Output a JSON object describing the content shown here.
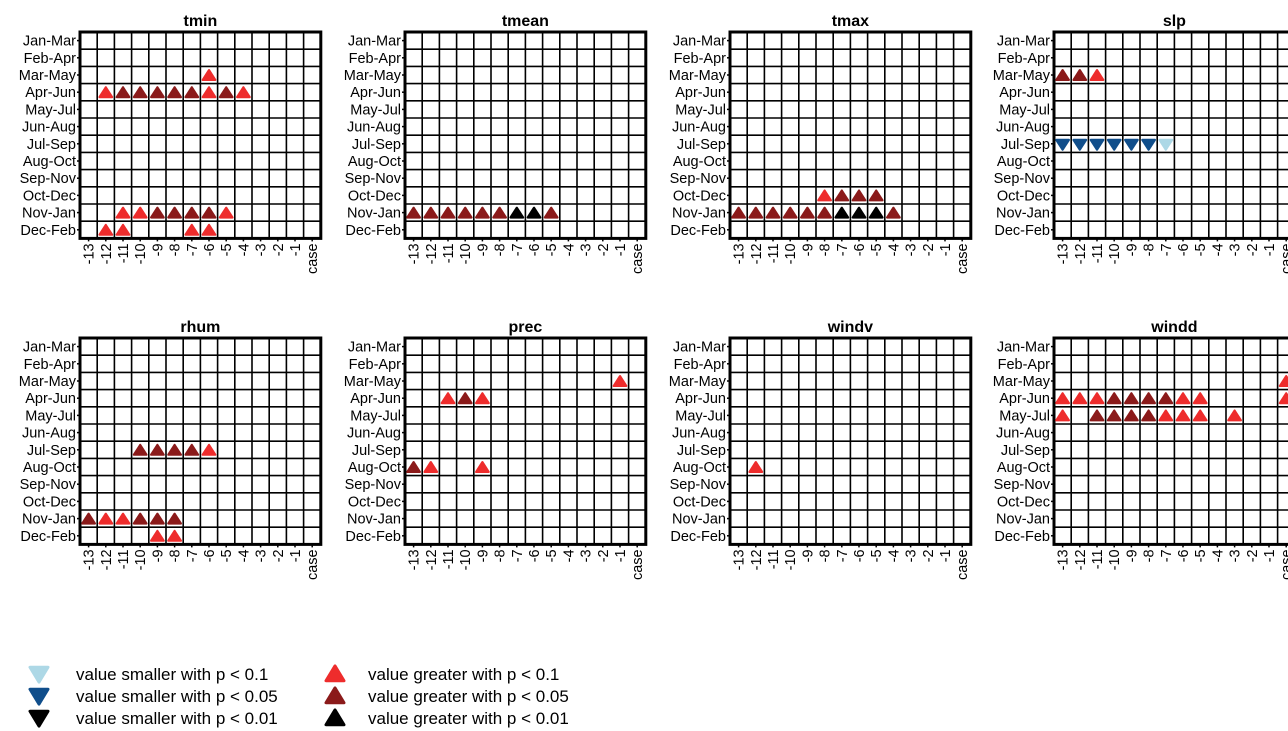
{
  "chart_data": {
    "type": "heatmap",
    "rows": [
      "Jan-Mar",
      "Feb-Apr",
      "Mar-May",
      "Apr-Jun",
      "May-Jul",
      "Jun-Aug",
      "Jul-Sep",
      "Aug-Oct",
      "Sep-Nov",
      "Oct-Dec",
      "Nov-Jan",
      "Dec-Feb"
    ],
    "columns": [
      "-13",
      "-12",
      "-11",
      "-10",
      "-9",
      "-8",
      "-7",
      "-6",
      "-5",
      "-4",
      "-3",
      "-2",
      "-1",
      "case"
    ],
    "panels": [
      {
        "title": "tmin",
        "marks": [
          {
            "row": "Mar-May",
            "col": "-6",
            "code": "g1"
          },
          {
            "row": "Apr-Jun",
            "col": "-12",
            "code": "g1"
          },
          {
            "row": "Apr-Jun",
            "col": "-11",
            "code": "g05"
          },
          {
            "row": "Apr-Jun",
            "col": "-10",
            "code": "g05"
          },
          {
            "row": "Apr-Jun",
            "col": "-9",
            "code": "g05"
          },
          {
            "row": "Apr-Jun",
            "col": "-8",
            "code": "g05"
          },
          {
            "row": "Apr-Jun",
            "col": "-7",
            "code": "g05"
          },
          {
            "row": "Apr-Jun",
            "col": "-6",
            "code": "g1"
          },
          {
            "row": "Apr-Jun",
            "col": "-5",
            "code": "g05"
          },
          {
            "row": "Apr-Jun",
            "col": "-4",
            "code": "g1"
          },
          {
            "row": "Nov-Jan",
            "col": "-11",
            "code": "g1"
          },
          {
            "row": "Nov-Jan",
            "col": "-10",
            "code": "g1"
          },
          {
            "row": "Nov-Jan",
            "col": "-9",
            "code": "g05"
          },
          {
            "row": "Nov-Jan",
            "col": "-8",
            "code": "g05"
          },
          {
            "row": "Nov-Jan",
            "col": "-7",
            "code": "g05"
          },
          {
            "row": "Nov-Jan",
            "col": "-6",
            "code": "g05"
          },
          {
            "row": "Nov-Jan",
            "col": "-5",
            "code": "g1"
          },
          {
            "row": "Dec-Feb",
            "col": "-12",
            "code": "g1"
          },
          {
            "row": "Dec-Feb",
            "col": "-11",
            "code": "g1"
          },
          {
            "row": "Dec-Feb",
            "col": "-7",
            "code": "g1"
          },
          {
            "row": "Dec-Feb",
            "col": "-6",
            "code": "g1"
          }
        ]
      },
      {
        "title": "tmean",
        "marks": [
          {
            "row": "Nov-Jan",
            "col": "-13",
            "code": "g05"
          },
          {
            "row": "Nov-Jan",
            "col": "-12",
            "code": "g05"
          },
          {
            "row": "Nov-Jan",
            "col": "-11",
            "code": "g05"
          },
          {
            "row": "Nov-Jan",
            "col": "-10",
            "code": "g05"
          },
          {
            "row": "Nov-Jan",
            "col": "-9",
            "code": "g05"
          },
          {
            "row": "Nov-Jan",
            "col": "-8",
            "code": "g05"
          },
          {
            "row": "Nov-Jan",
            "col": "-7",
            "code": "g01"
          },
          {
            "row": "Nov-Jan",
            "col": "-6",
            "code": "g01"
          },
          {
            "row": "Nov-Jan",
            "col": "-5",
            "code": "g05"
          }
        ]
      },
      {
        "title": "tmax",
        "marks": [
          {
            "row": "Oct-Dec",
            "col": "-8",
            "code": "g1"
          },
          {
            "row": "Oct-Dec",
            "col": "-7",
            "code": "g05"
          },
          {
            "row": "Oct-Dec",
            "col": "-6",
            "code": "g05"
          },
          {
            "row": "Oct-Dec",
            "col": "-5",
            "code": "g05"
          },
          {
            "row": "Nov-Jan",
            "col": "-13",
            "code": "g05"
          },
          {
            "row": "Nov-Jan",
            "col": "-12",
            "code": "g05"
          },
          {
            "row": "Nov-Jan",
            "col": "-11",
            "code": "g05"
          },
          {
            "row": "Nov-Jan",
            "col": "-10",
            "code": "g05"
          },
          {
            "row": "Nov-Jan",
            "col": "-9",
            "code": "g05"
          },
          {
            "row": "Nov-Jan",
            "col": "-8",
            "code": "g05"
          },
          {
            "row": "Nov-Jan",
            "col": "-7",
            "code": "g01"
          },
          {
            "row": "Nov-Jan",
            "col": "-6",
            "code": "g01"
          },
          {
            "row": "Nov-Jan",
            "col": "-5",
            "code": "g01"
          },
          {
            "row": "Nov-Jan",
            "col": "-4",
            "code": "g05"
          }
        ]
      },
      {
        "title": "slp",
        "marks": [
          {
            "row": "Mar-May",
            "col": "-13",
            "code": "g05"
          },
          {
            "row": "Mar-May",
            "col": "-12",
            "code": "g05"
          },
          {
            "row": "Mar-May",
            "col": "-11",
            "code": "g1"
          },
          {
            "row": "Jul-Sep",
            "col": "-13",
            "code": "s05"
          },
          {
            "row": "Jul-Sep",
            "col": "-12",
            "code": "s05"
          },
          {
            "row": "Jul-Sep",
            "col": "-11",
            "code": "s05"
          },
          {
            "row": "Jul-Sep",
            "col": "-10",
            "code": "s05"
          },
          {
            "row": "Jul-Sep",
            "col": "-9",
            "code": "s05"
          },
          {
            "row": "Jul-Sep",
            "col": "-8",
            "code": "s05"
          },
          {
            "row": "Jul-Sep",
            "col": "-7",
            "code": "s1"
          }
        ]
      },
      {
        "title": "rhum",
        "marks": [
          {
            "row": "Jul-Sep",
            "col": "-10",
            "code": "g05"
          },
          {
            "row": "Jul-Sep",
            "col": "-9",
            "code": "g05"
          },
          {
            "row": "Jul-Sep",
            "col": "-8",
            "code": "g05"
          },
          {
            "row": "Jul-Sep",
            "col": "-7",
            "code": "g05"
          },
          {
            "row": "Jul-Sep",
            "col": "-6",
            "code": "g1"
          },
          {
            "row": "Nov-Jan",
            "col": "-13",
            "code": "g05"
          },
          {
            "row": "Nov-Jan",
            "col": "-12",
            "code": "g1"
          },
          {
            "row": "Nov-Jan",
            "col": "-11",
            "code": "g1"
          },
          {
            "row": "Nov-Jan",
            "col": "-10",
            "code": "g05"
          },
          {
            "row": "Nov-Jan",
            "col": "-9",
            "code": "g05"
          },
          {
            "row": "Nov-Jan",
            "col": "-8",
            "code": "g05"
          },
          {
            "row": "Dec-Feb",
            "col": "-9",
            "code": "g1"
          },
          {
            "row": "Dec-Feb",
            "col": "-8",
            "code": "g1"
          }
        ]
      },
      {
        "title": "prec",
        "marks": [
          {
            "row": "Mar-May",
            "col": "-1",
            "code": "g1"
          },
          {
            "row": "Apr-Jun",
            "col": "-11",
            "code": "g1"
          },
          {
            "row": "Apr-Jun",
            "col": "-10",
            "code": "g05"
          },
          {
            "row": "Apr-Jun",
            "col": "-9",
            "code": "g1"
          },
          {
            "row": "Aug-Oct",
            "col": "-13",
            "code": "g05"
          },
          {
            "row": "Aug-Oct",
            "col": "-12",
            "code": "g1"
          },
          {
            "row": "Aug-Oct",
            "col": "-9",
            "code": "g1"
          }
        ]
      },
      {
        "title": "windv",
        "marks": [
          {
            "row": "Aug-Oct",
            "col": "-12",
            "code": "g1"
          }
        ]
      },
      {
        "title": "windd",
        "marks": [
          {
            "row": "Mar-May",
            "col": "case",
            "code": "g1"
          },
          {
            "row": "Apr-Jun",
            "col": "-13",
            "code": "g1"
          },
          {
            "row": "Apr-Jun",
            "col": "-12",
            "code": "g1"
          },
          {
            "row": "Apr-Jun",
            "col": "-11",
            "code": "g1"
          },
          {
            "row": "Apr-Jun",
            "col": "-10",
            "code": "g05"
          },
          {
            "row": "Apr-Jun",
            "col": "-9",
            "code": "g05"
          },
          {
            "row": "Apr-Jun",
            "col": "-8",
            "code": "g05"
          },
          {
            "row": "Apr-Jun",
            "col": "-7",
            "code": "g05"
          },
          {
            "row": "Apr-Jun",
            "col": "-6",
            "code": "g1"
          },
          {
            "row": "Apr-Jun",
            "col": "-5",
            "code": "g1"
          },
          {
            "row": "Apr-Jun",
            "col": "case",
            "code": "g1"
          },
          {
            "row": "May-Jul",
            "col": "-13",
            "code": "g1"
          },
          {
            "row": "May-Jul",
            "col": "-11",
            "code": "g05"
          },
          {
            "row": "May-Jul",
            "col": "-10",
            "code": "g05"
          },
          {
            "row": "May-Jul",
            "col": "-9",
            "code": "g05"
          },
          {
            "row": "May-Jul",
            "col": "-8",
            "code": "g05"
          },
          {
            "row": "May-Jul",
            "col": "-7",
            "code": "g1"
          },
          {
            "row": "May-Jul",
            "col": "-6",
            "code": "g1"
          },
          {
            "row": "May-Jul",
            "col": "-5",
            "code": "g1"
          },
          {
            "row": "May-Jul",
            "col": "-3",
            "code": "g1"
          }
        ]
      }
    ],
    "legend": [
      {
        "code": "s1",
        "label": "value smaller with p < 0.1",
        "color": "#add8e6",
        "shape": "triangle-down"
      },
      {
        "code": "g1",
        "label": "value greater with p < 0.1",
        "color": "#ee2c2c",
        "shape": "triangle-up"
      },
      {
        "code": "s05",
        "label": "value smaller with p < 0.05",
        "color": "#104e8b",
        "shape": "triangle-down"
      },
      {
        "code": "g05",
        "label": "value greater with p < 0.05",
        "color": "#8b1a1a",
        "shape": "triangle-up"
      },
      {
        "code": "s01",
        "label": "value smaller with p < 0.01",
        "color": "#000000",
        "shape": "triangle-down"
      },
      {
        "code": "g01",
        "label": "value greater with p < 0.01",
        "color": "#000000",
        "shape": "triangle-up"
      }
    ],
    "legend_position": "bottom-left",
    "grid": true
  }
}
